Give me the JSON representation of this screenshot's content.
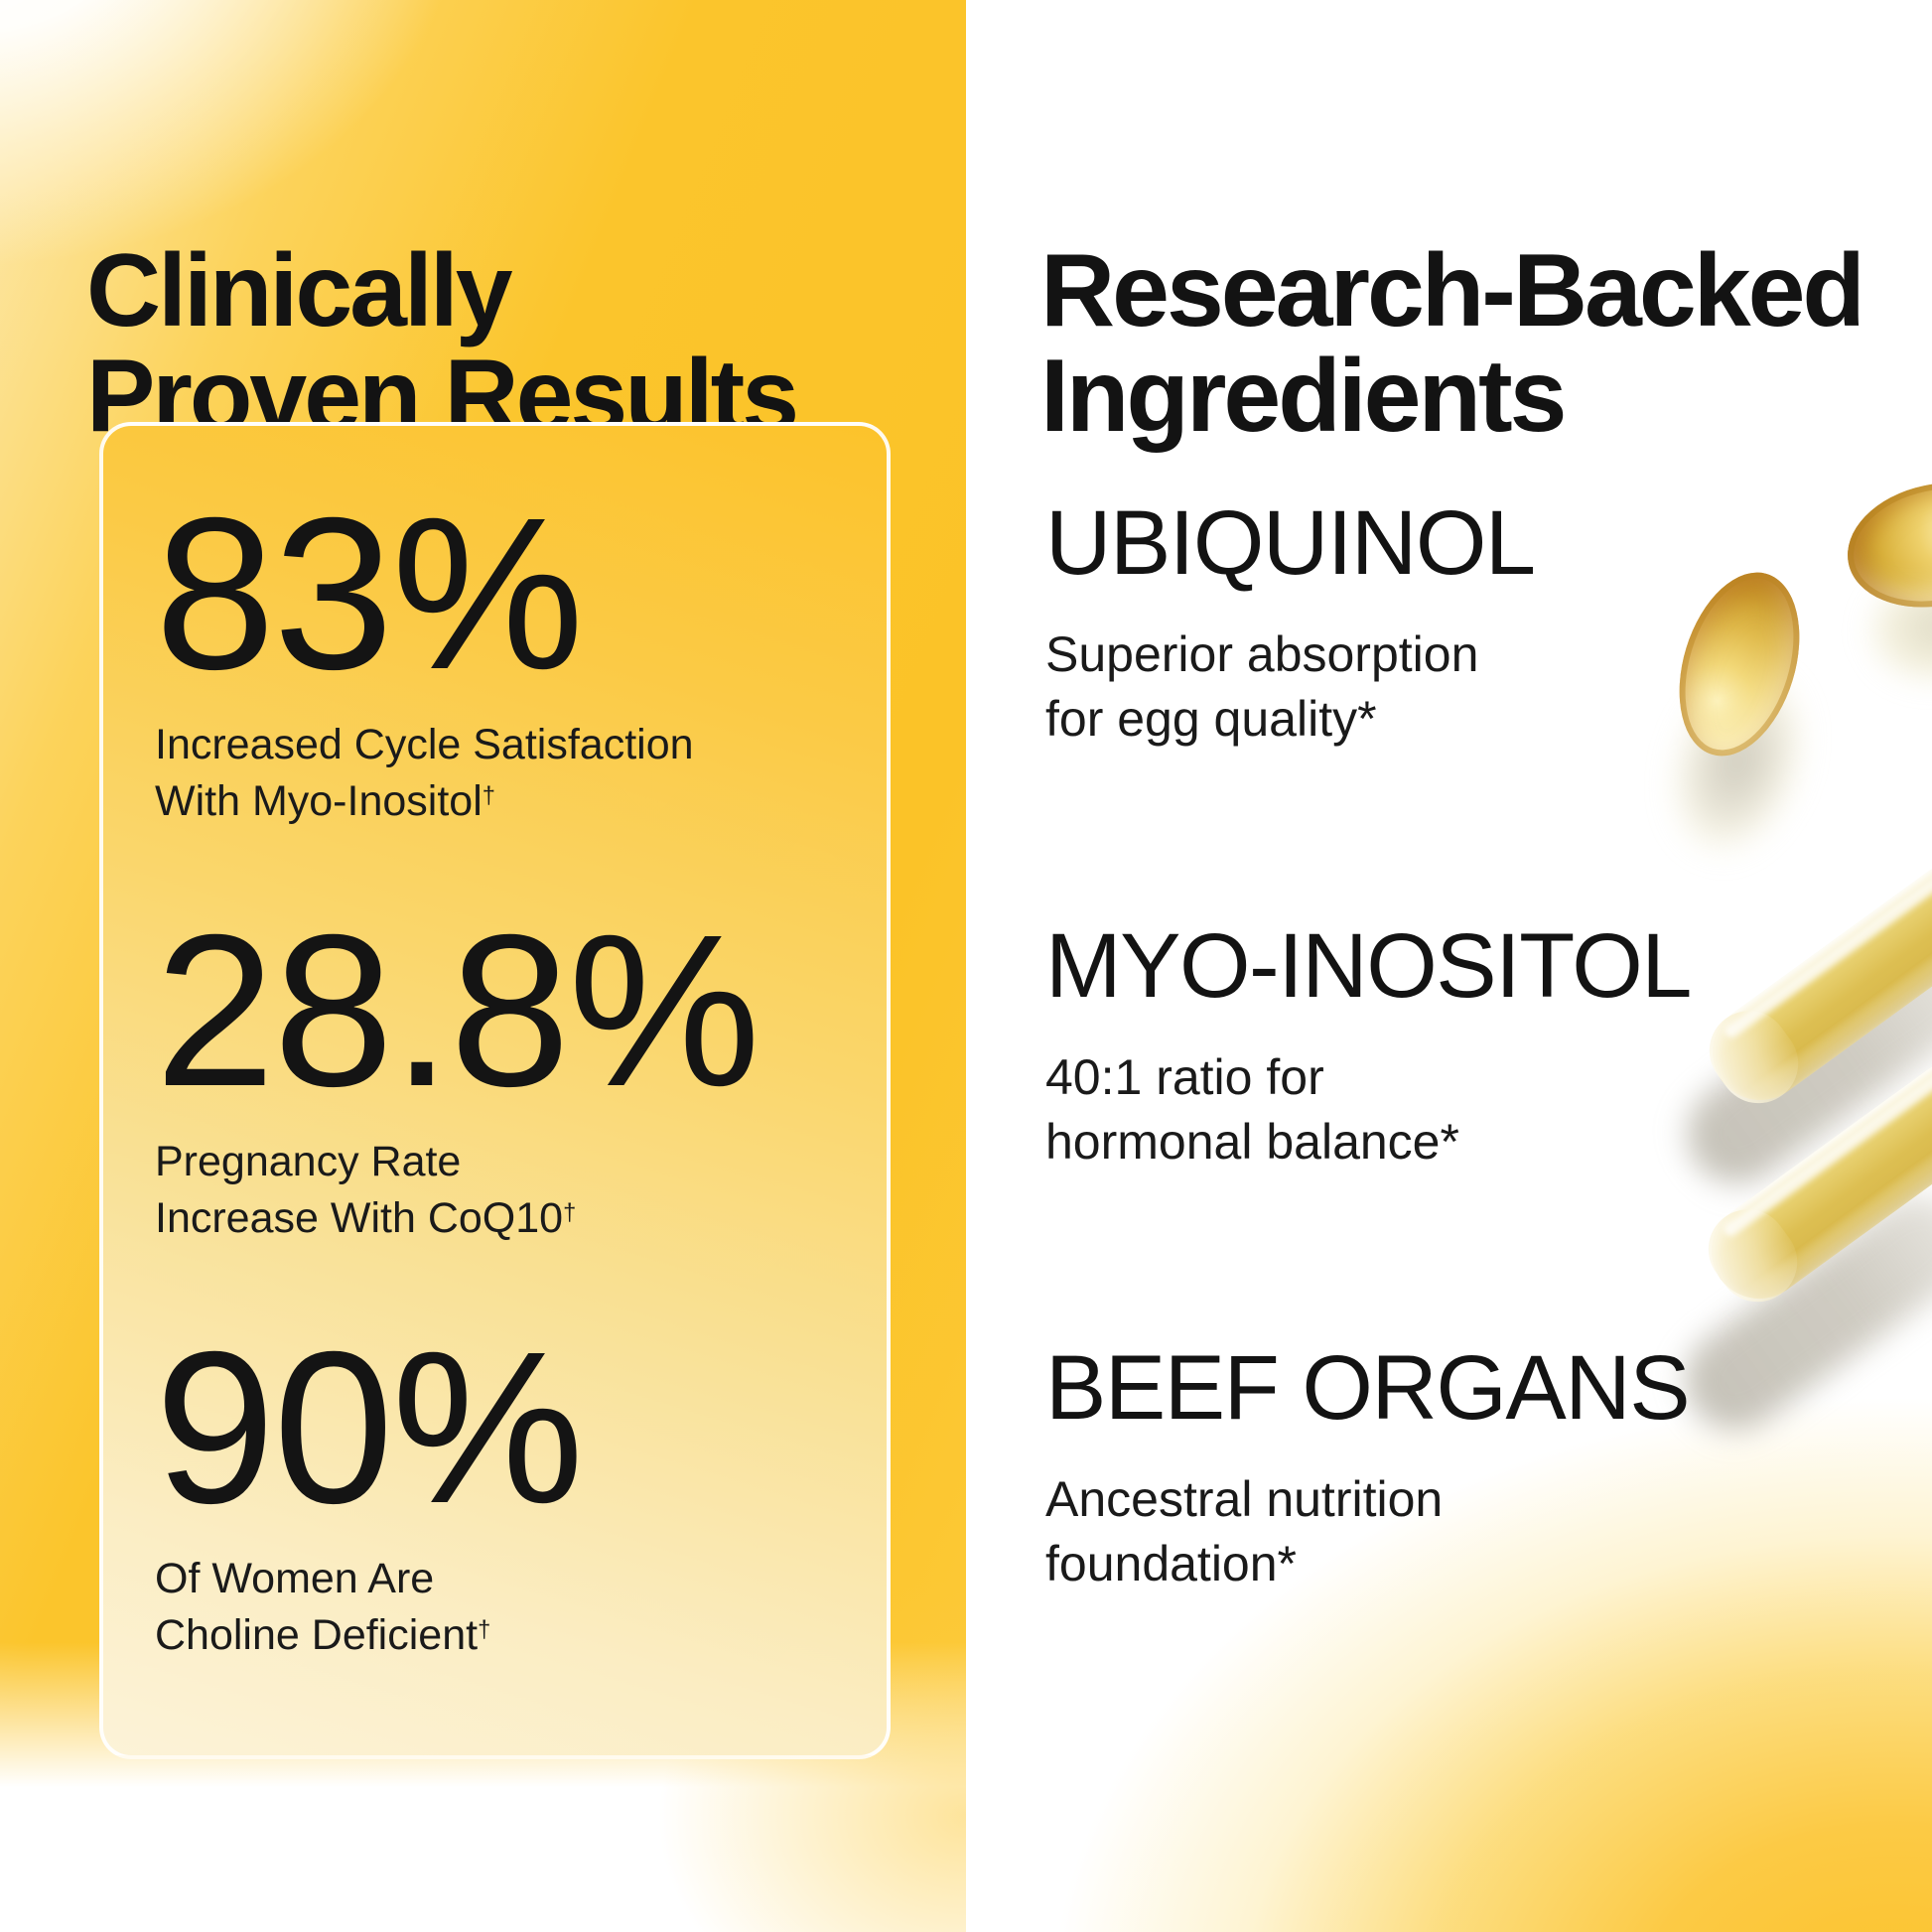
{
  "left_panel": {
    "title_lines": [
      "Clinically",
      "Proven Results"
    ],
    "stats": [
      {
        "value": "83%",
        "caption_lines": [
          "Increased Cycle Satisfaction",
          "With Myo-Inositol"
        ],
        "superscript": "†"
      },
      {
        "value": "28.8%",
        "caption_lines": [
          "Pregnancy Rate",
          "Increase With CoQ10"
        ],
        "superscript": "†"
      },
      {
        "value": "90%",
        "caption_lines": [
          "Of Women Are",
          "Choline Deficient"
        ],
        "superscript": "†"
      }
    ]
  },
  "right_panel": {
    "title_lines": [
      "Research-Backed",
      "Ingredients"
    ],
    "ingredients": [
      {
        "name": "UBIQUINOL",
        "description_lines": [
          "Superior absorption",
          "for egg quality*"
        ]
      },
      {
        "name": "MYO-INOSITOL",
        "description_lines": [
          "40:1 ratio for",
          "hormonal balance*"
        ]
      },
      {
        "name": "BEEF ORGANS",
        "description_lines": [
          "Ancestral nutrition",
          "foundation*"
        ]
      }
    ],
    "photos": [
      "softgel-capsule",
      "softgel-capsule-partial",
      "powder-capsule",
      "powder-capsule"
    ]
  },
  "colors": {
    "brand_yellow": "#fbc328",
    "card_cream": "#fcf3d8",
    "softgel_amber": "#d9b13c",
    "text_black": "#141414",
    "background_white": "#ffffff"
  }
}
